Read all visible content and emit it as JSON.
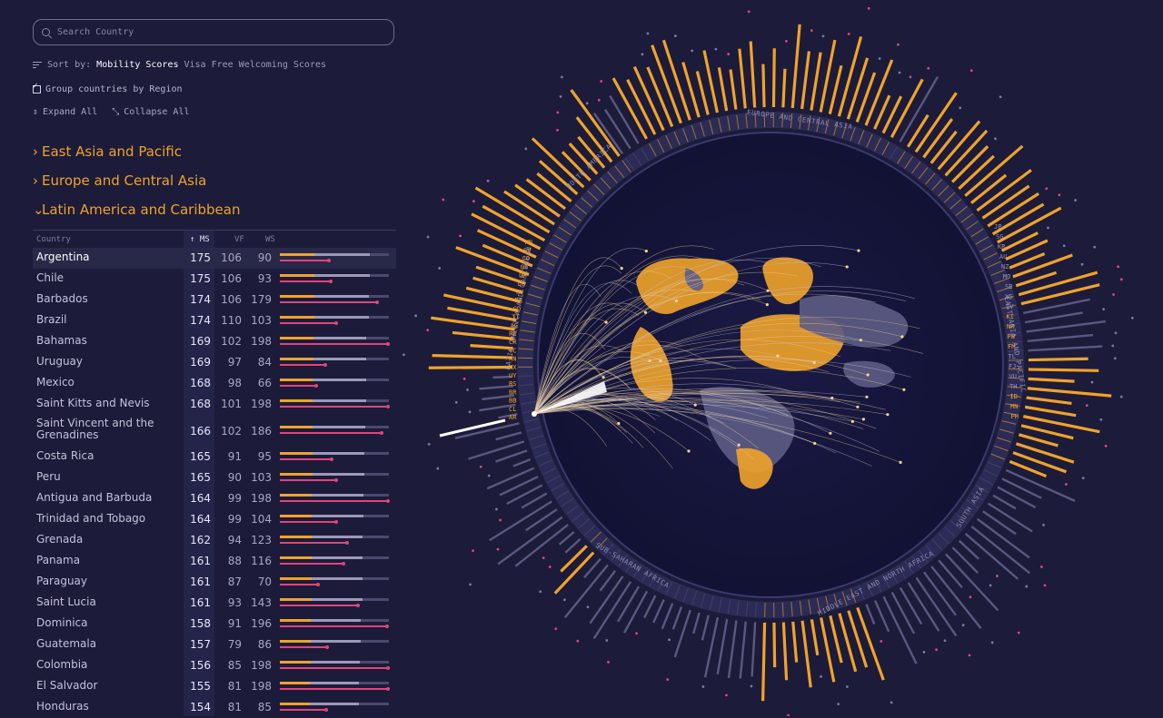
{
  "search": {
    "placeholder": "Search Country"
  },
  "sort": {
    "label": "Sort by:",
    "options": [
      "Mobility Scores",
      "Visa Free",
      "Welcoming Scores"
    ],
    "active": 0
  },
  "group": {
    "label": "Group countries by Region",
    "checked": true
  },
  "controls": {
    "expand": "Expand All",
    "collapse": "Collapse All"
  },
  "regions": [
    {
      "name": "East Asia and Pacific",
      "expanded": false
    },
    {
      "name": "Europe and Central Asia",
      "expanded": false
    },
    {
      "name": "Latin America and Caribbean",
      "expanded": true
    }
  ],
  "table": {
    "headers": {
      "country": "Country",
      "ms": "↑ MS",
      "vf": "VF",
      "ws": "WS"
    },
    "rows": [
      {
        "country": "Argentina",
        "ms": 175,
        "vf": 106,
        "ws": 90
      },
      {
        "country": "Chile",
        "ms": 175,
        "vf": 106,
        "ws": 93
      },
      {
        "country": "Barbados",
        "ms": 174,
        "vf": 106,
        "ws": 179
      },
      {
        "country": "Brazil",
        "ms": 174,
        "vf": 110,
        "ws": 103
      },
      {
        "country": "Bahamas",
        "ms": 169,
        "vf": 102,
        "ws": 198
      },
      {
        "country": "Uruguay",
        "ms": 169,
        "vf": 97,
        "ws": 84
      },
      {
        "country": "Mexico",
        "ms": 168,
        "vf": 98,
        "ws": 66
      },
      {
        "country": "Saint Kitts and Nevis",
        "ms": 168,
        "vf": 101,
        "ws": 198
      },
      {
        "country": "Saint Vincent and the Grenadines",
        "ms": 166,
        "vf": 102,
        "ws": 186
      },
      {
        "country": "Costa Rica",
        "ms": 165,
        "vf": 91,
        "ws": 95
      },
      {
        "country": "Peru",
        "ms": 165,
        "vf": 90,
        "ws": 103
      },
      {
        "country": "Antigua and Barbuda",
        "ms": 164,
        "vf": 99,
        "ws": 198
      },
      {
        "country": "Trinidad and Tobago",
        "ms": 164,
        "vf": 99,
        "ws": 104
      },
      {
        "country": "Grenada",
        "ms": 162,
        "vf": 94,
        "ws": 123
      },
      {
        "country": "Panama",
        "ms": 161,
        "vf": 88,
        "ws": 116
      },
      {
        "country": "Paraguay",
        "ms": 161,
        "vf": 87,
        "ws": 70
      },
      {
        "country": "Saint Lucia",
        "ms": 161,
        "vf": 93,
        "ws": 143
      },
      {
        "country": "Dominica",
        "ms": 158,
        "vf": 91,
        "ws": 196
      },
      {
        "country": "Guatemala",
        "ms": 157,
        "vf": 79,
        "ws": 86
      },
      {
        "country": "Colombia",
        "ms": 156,
        "vf": 85,
        "ws": 198
      },
      {
        "country": "El Salvador",
        "ms": 155,
        "vf": 81,
        "ws": 198
      },
      {
        "country": "Honduras",
        "ms": 154,
        "vf": 81,
        "ws": 85
      }
    ]
  },
  "viz": {
    "region_labels": [
      "EUROPE AND CENTRAL ASIA",
      "EAST ASIA AND PACIFIC",
      "SOUTH ASIA",
      "MIDDLE EAST AND NORTH AFRICA",
      "SUB-SAHARAN AFRICA",
      "LATIN AMERICA AND CARIBBEAN",
      "NORTH AMERICA"
    ],
    "lac_codes": [
      "AR",
      "CL",
      "BB",
      "BR",
      "BS",
      "UY",
      "MX",
      "KN",
      "VC",
      "CR",
      "PE",
      "AG",
      "TT",
      "GD",
      "PA",
      "PY",
      "LC",
      "DM",
      "GT",
      "CO",
      "SV",
      "HN"
    ],
    "eap_codes": [
      "JP",
      "SG",
      "KR",
      "AU",
      "NZ",
      "MO",
      "SB",
      "WS",
      "TV",
      "KI",
      "NR",
      "PW",
      "FM",
      "TL",
      "FJ",
      "VU",
      "TH",
      "ID",
      "MN",
      "PH"
    ],
    "colors": {
      "accent": "#f0a32a",
      "pink": "#e0457a",
      "bg": "#1c1b3a",
      "globe": "#15143a",
      "land": "#5d5c84"
    }
  }
}
